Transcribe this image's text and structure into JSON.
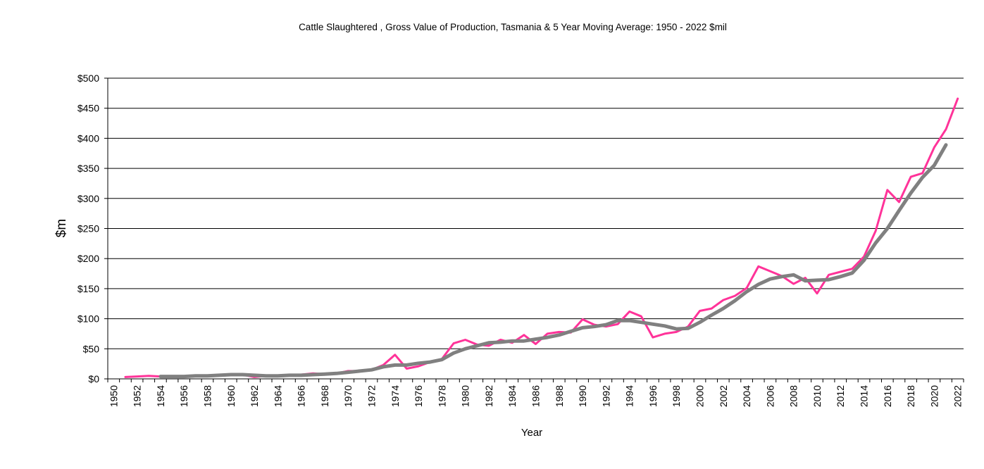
{
  "chart_data": {
    "type": "line",
    "title": "Cattle Slaughtered , Gross Value of Production,  Tasmania & 5 Year Moving Average: 1950 - 2022 $mil",
    "xlabel": "Year",
    "ylabel": "$m",
    "ylim": [
      0,
      500
    ],
    "yticks": [
      0,
      50,
      100,
      150,
      200,
      250,
      300,
      350,
      400,
      450,
      500
    ],
    "ytick_labels": [
      "$0",
      "$50",
      "$100",
      "$150",
      "$200",
      "$250",
      "$300",
      "$350",
      "$400",
      "$450",
      "$500"
    ],
    "x_categories_start": 1950,
    "x_categories_end": 2022,
    "xtick_labels": [
      "1950",
      "1952",
      "1954",
      "1956",
      "1958",
      "1960",
      "1962",
      "1964",
      "1966",
      "1968",
      "1970",
      "1972",
      "1974",
      "1976",
      "1978",
      "1980",
      "1982",
      "1984",
      "1986",
      "1988",
      "1990",
      "1992",
      "1994",
      "1996",
      "1998",
      "2000",
      "2002",
      "2004",
      "2006",
      "2008",
      "2010",
      "2012",
      "2014",
      "2016",
      "2018",
      "2020",
      "2022"
    ],
    "grid": "horizontal",
    "legend": "none",
    "series": [
      {
        "name": "Gross Value of Production",
        "color": "#ff3399",
        "start_year": 1951,
        "values": [
          3,
          4,
          5,
          4,
          4,
          4,
          5,
          5,
          7,
          7,
          7,
          3,
          5,
          5,
          6,
          7,
          9,
          8,
          9,
          13,
          13,
          15,
          23,
          40,
          17,
          21,
          28,
          33,
          59,
          65,
          57,
          55,
          65,
          60,
          73,
          58,
          75,
          78,
          77,
          99,
          90,
          87,
          91,
          112,
          104,
          69,
          75,
          78,
          87,
          113,
          117,
          131,
          138,
          151,
          187,
          179,
          171,
          158,
          168,
          142,
          173,
          178,
          183,
          203,
          246,
          314,
          294,
          336,
          342,
          385,
          415,
          466
        ]
      },
      {
        "name": "5 Year Moving Average",
        "color": "#808080",
        "start_year": 1954,
        "values": [
          4,
          4,
          4,
          5,
          5,
          6,
          7,
          7,
          6,
          5,
          5,
          6,
          6,
          7,
          8,
          9,
          11,
          13,
          15,
          20,
          23,
          23,
          26,
          28,
          32,
          43,
          50,
          55,
          60,
          61,
          63,
          63,
          66,
          69,
          73,
          79,
          85,
          87,
          90,
          97,
          97,
          94,
          91,
          88,
          83,
          84,
          94,
          106,
          117,
          130,
          145,
          157,
          166,
          170,
          173,
          163,
          164,
          165,
          170,
          176,
          197,
          226,
          250,
          280,
          309,
          335,
          355,
          389
        ]
      }
    ]
  }
}
